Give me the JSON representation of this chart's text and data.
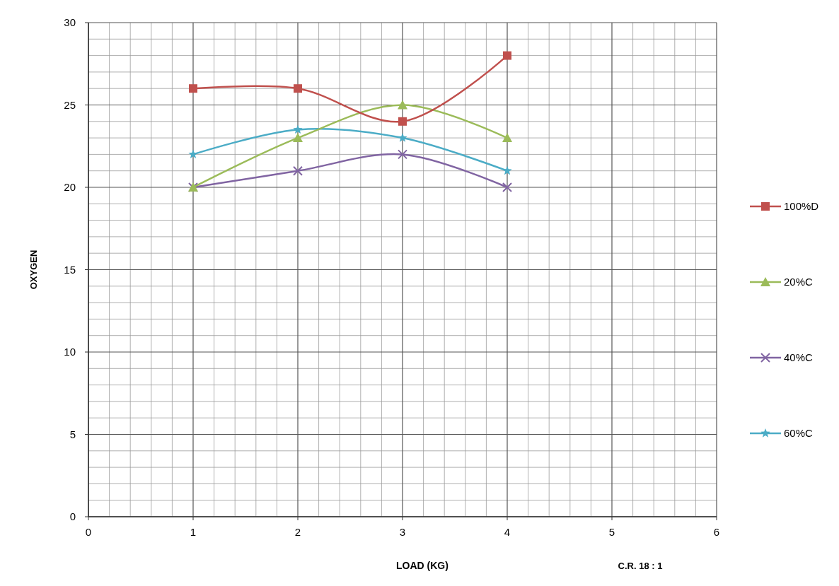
{
  "chart_data": {
    "type": "line",
    "xlabel": "LOAD  (KG)",
    "ylabel": "OXYGEN",
    "x": [
      1,
      2,
      3,
      4
    ],
    "series": [
      {
        "name": "100%D",
        "color": "#c0504d",
        "marker": "square",
        "values": [
          26,
          26,
          24,
          28
        ]
      },
      {
        "name": "20%C",
        "color": "#9bbb59",
        "marker": "triangle",
        "values": [
          20,
          23,
          25,
          23
        ]
      },
      {
        "name": "40%C",
        "color": "#8064a2",
        "marker": "cross",
        "values": [
          20,
          21,
          22,
          20
        ]
      },
      {
        "name": "60%C",
        "color": "#4bacc6",
        "marker": "star",
        "values": [
          22,
          23.5,
          23,
          21
        ]
      }
    ],
    "xlim": [
      0,
      6
    ],
    "xticks": [
      0,
      1,
      2,
      3,
      4,
      5,
      6
    ],
    "ylim": [
      0,
      30
    ],
    "yticks": [
      0,
      5,
      10,
      15,
      20,
      25,
      30
    ],
    "grid": true,
    "legend": "right",
    "annotations": [
      "C.R. 18 : 1"
    ]
  }
}
